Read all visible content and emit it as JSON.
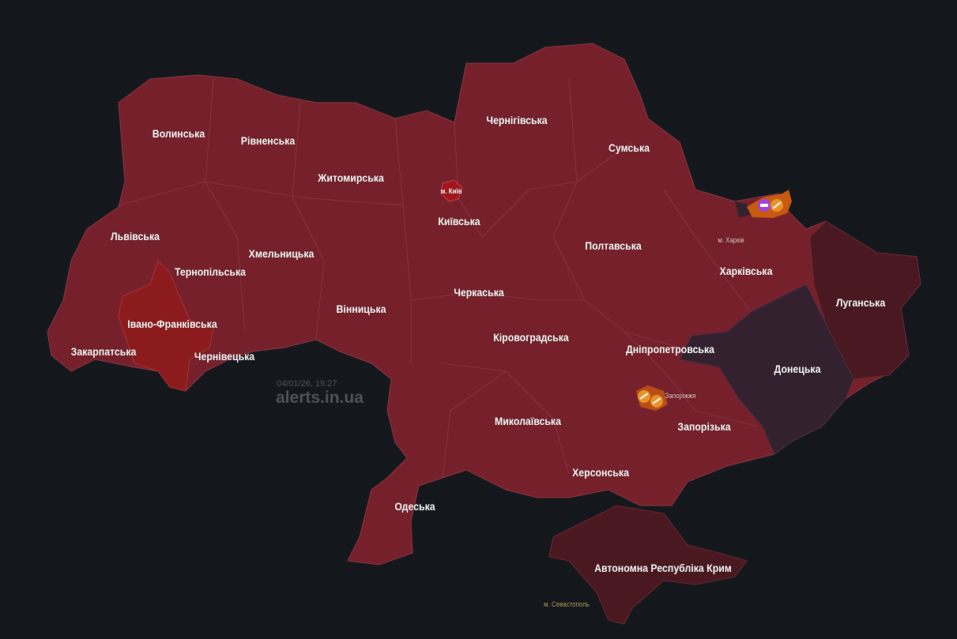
{
  "watermark": {
    "timestamp": "04/01/26, 19:27",
    "site": "alerts.in.ua"
  },
  "colors": {
    "background": "#14171b",
    "alert": "#76202b",
    "alert_bright": "#8c1b1d",
    "occupied": "#4a1820",
    "front": "#33212f",
    "threat": "#c85a10"
  },
  "regions": [
    {
      "name": "Волинська",
      "status": "alert"
    },
    {
      "name": "Рівненська",
      "status": "alert"
    },
    {
      "name": "Житомирська",
      "status": "alert"
    },
    {
      "name": "Чернігівська",
      "status": "alert"
    },
    {
      "name": "Сумська",
      "status": "alert"
    },
    {
      "name": "Київська",
      "status": "alert"
    },
    {
      "name": "Львівська",
      "status": "alert"
    },
    {
      "name": "Хмельницька",
      "status": "alert"
    },
    {
      "name": "Тернопільська",
      "status": "alert"
    },
    {
      "name": "Полтавська",
      "status": "alert"
    },
    {
      "name": "Харківська",
      "status": "alert"
    },
    {
      "name": "Луганська",
      "status": "occupied"
    },
    {
      "name": "Івано-Франківська",
      "status": "alert-highlight"
    },
    {
      "name": "Вінницька",
      "status": "alert"
    },
    {
      "name": "Черкаська",
      "status": "alert"
    },
    {
      "name": "Закарпатська",
      "status": "alert"
    },
    {
      "name": "Чернівецька",
      "status": "alert"
    },
    {
      "name": "Кіровоградська",
      "status": "alert"
    },
    {
      "name": "Дніпропетровська",
      "status": "alert"
    },
    {
      "name": "Донецька",
      "status": "front"
    },
    {
      "name": "Миколаївська",
      "status": "alert"
    },
    {
      "name": "Запорізька",
      "status": "alert"
    },
    {
      "name": "Херсонська",
      "status": "alert"
    },
    {
      "name": "Одеська",
      "status": "alert"
    },
    {
      "name": "Автономна Республіка Крим",
      "status": "occupied"
    }
  ],
  "cities": {
    "kyiv": "м. Київ",
    "kharkiv": "м. Харків",
    "zaporizhzhia": "Запоріжжя",
    "sevastopol": "м. Севастополь"
  },
  "markers": [
    {
      "type": "tank-icon",
      "location": "Харківська"
    },
    {
      "type": "artillery-icon",
      "location": "Харківська"
    },
    {
      "type": "artillery-icon",
      "location": "Запоріжжя"
    },
    {
      "type": "artillery-icon",
      "location": "Запоріжжя"
    }
  ]
}
